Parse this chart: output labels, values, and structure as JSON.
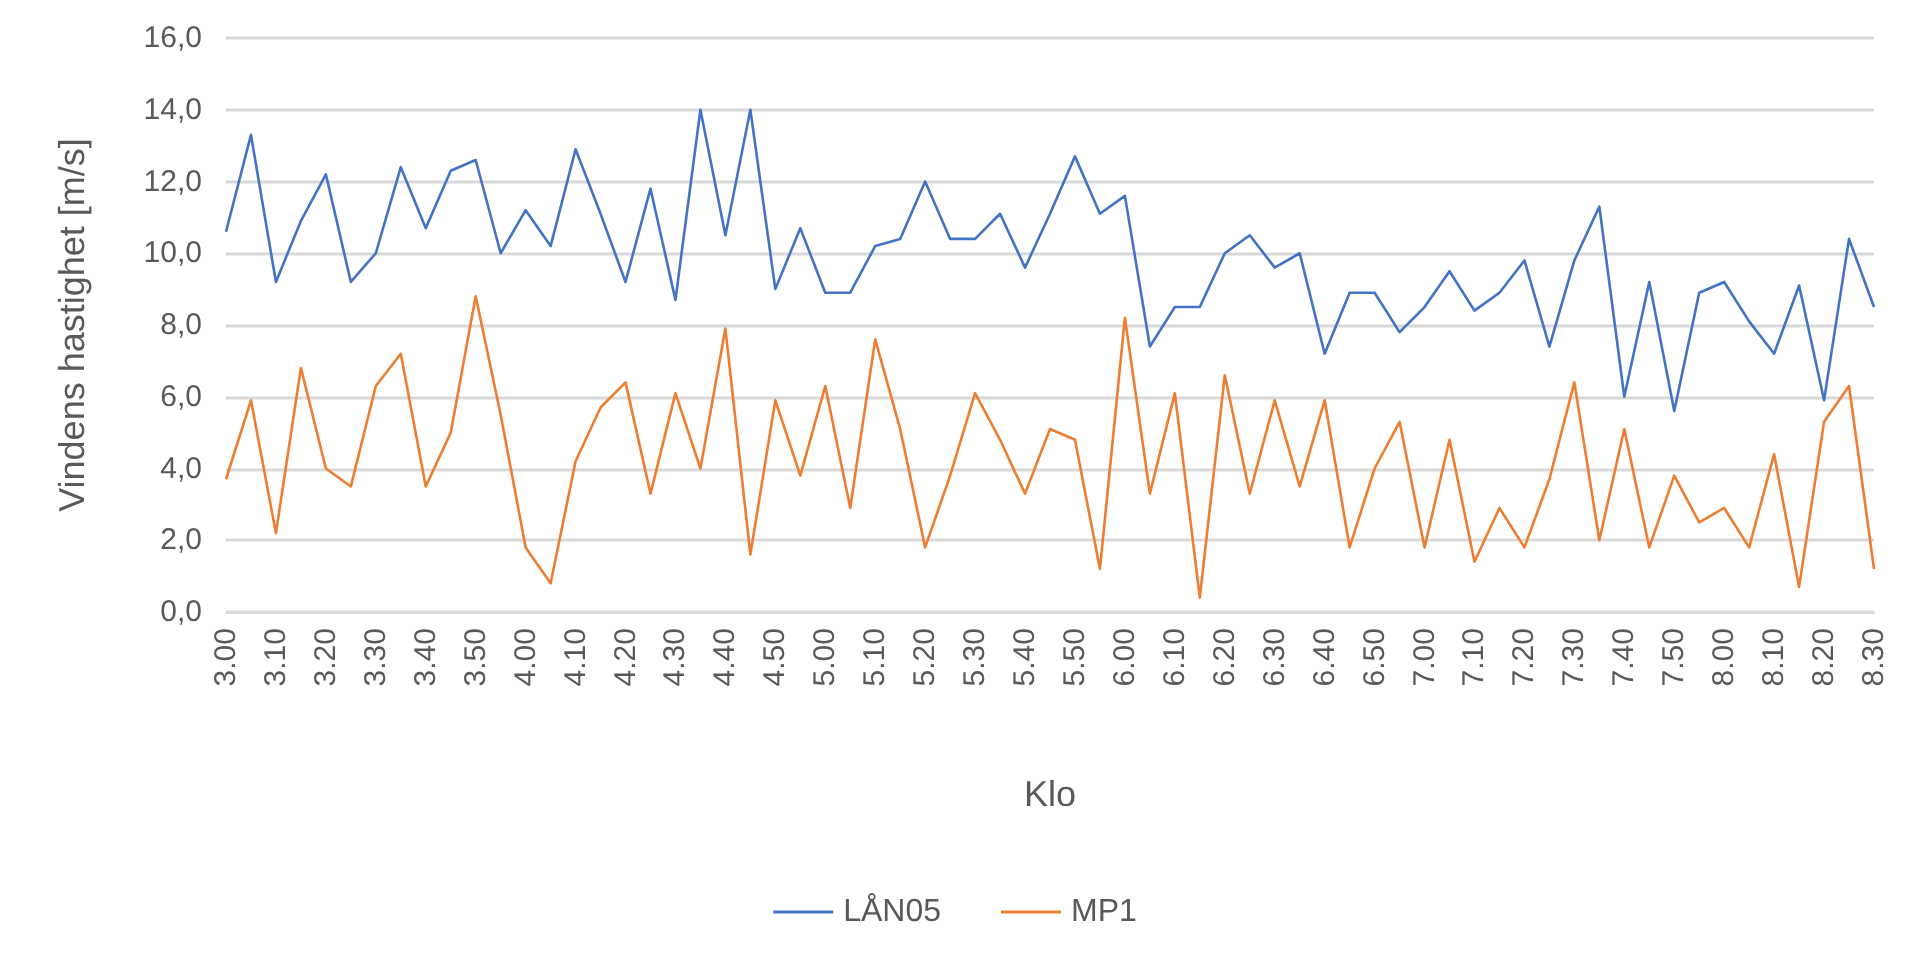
{
  "chart_data": {
    "type": "line",
    "xlabel": "Klo",
    "ylabel": "Vindens hastighet [m/s]",
    "categories": [
      "3.00",
      null,
      "3.10",
      null,
      "3.20",
      null,
      "3.30",
      null,
      "3.40",
      null,
      "3.50",
      null,
      "4.00",
      null,
      "4.10",
      null,
      "4.20",
      null,
      "4.30",
      null,
      "4.40",
      null,
      "4.50",
      null,
      "5.00",
      null,
      "5.10",
      null,
      "5.20",
      null,
      "5.30",
      null,
      "5.40",
      null,
      "5.50",
      null,
      "6.00",
      null,
      "6.10",
      null,
      "6.20",
      null,
      "6.30",
      null,
      "6.40",
      null,
      "6.50",
      null,
      "7.00",
      null,
      "7.10",
      null,
      "7.20",
      null,
      "7.30",
      null,
      "7.40",
      null,
      "7.50",
      null,
      "8.00",
      null,
      "8.10",
      null,
      "8.20",
      null,
      "8.30"
    ],
    "series": [
      {
        "name": "LÅN05",
        "color": "#4472c4",
        "values": [
          10.6,
          13.3,
          9.2,
          10.9,
          12.2,
          9.2,
          10.0,
          12.4,
          10.7,
          12.3,
          12.6,
          10.0,
          11.2,
          10.2,
          12.9,
          11.1,
          9.2,
          11.8,
          8.7,
          14.0,
          10.5,
          14.0,
          9.0,
          10.7,
          8.9,
          8.9,
          10.2,
          10.4,
          12.0,
          10.4,
          10.4,
          11.1,
          9.6,
          11.1,
          12.7,
          11.1,
          11.6,
          7.4,
          8.5,
          8.5,
          10.0,
          10.5,
          9.6,
          10.0,
          7.2,
          8.9,
          8.9,
          7.8,
          8.5,
          9.5,
          8.4,
          8.9,
          9.8,
          7.4,
          9.8,
          11.3,
          6.0,
          9.2,
          5.6,
          8.9,
          9.2,
          8.1,
          7.2,
          9.1,
          5.9,
          10.4,
          8.5
        ]
      },
      {
        "name": "MP1",
        "color": "#ed7d31",
        "values": [
          3.7,
          5.9,
          2.2,
          6.8,
          4.0,
          3.5,
          6.3,
          7.2,
          3.5,
          5.0,
          8.8,
          5.5,
          1.8,
          0.8,
          4.2,
          5.7,
          6.4,
          3.3,
          6.1,
          4.0,
          7.9,
          1.6,
          5.9,
          3.8,
          6.3,
          2.9,
          7.6,
          5.1,
          1.8,
          3.8,
          6.1,
          4.8,
          3.3,
          5.1,
          4.8,
          1.2,
          8.2,
          3.3,
          6.1,
          0.4,
          6.6,
          3.3,
          5.9,
          3.5,
          5.9,
          1.8,
          4.0,
          5.3,
          1.8,
          4.8,
          1.4,
          2.9,
          1.8,
          3.7,
          6.4,
          2.0,
          5.1,
          1.8,
          3.8,
          2.5,
          2.9,
          1.8,
          4.4,
          0.7,
          5.3,
          6.3,
          1.2
        ]
      }
    ],
    "ylim": [
      0,
      16
    ],
    "yticks": [
      {
        "value": 0,
        "label": "0,0"
      },
      {
        "value": 2,
        "label": "2,0"
      },
      {
        "value": 4,
        "label": "4,0"
      },
      {
        "value": 6,
        "label": "6,0"
      },
      {
        "value": 8,
        "label": "8,0"
      },
      {
        "value": 10,
        "label": "10,0"
      },
      {
        "value": 12,
        "label": "12,0"
      },
      {
        "value": 14,
        "label": "14,0"
      },
      {
        "value": 16,
        "label": "16,0"
      }
    ],
    "grid": "y",
    "legend": "bottom"
  }
}
